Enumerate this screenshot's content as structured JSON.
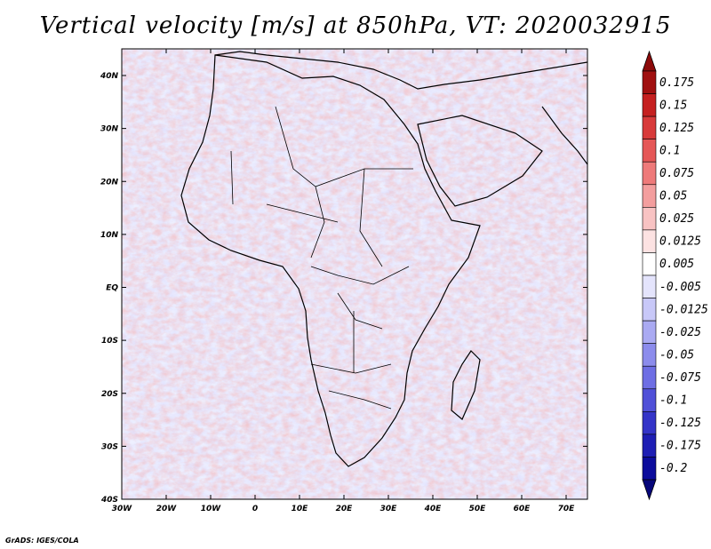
{
  "title": "Vertical velocity [m/s] at 850hPa, VT: 2020032915",
  "credit": "GrADS: IGES/COLA",
  "axes": {
    "lon_ticks": [
      "30W",
      "20W",
      "10W",
      "0",
      "10E",
      "20E",
      "30E",
      "40E",
      "50E",
      "60E",
      "70E"
    ],
    "lat_ticks": [
      "40N",
      "30N",
      "20N",
      "10N",
      "EQ",
      "10S",
      "20S",
      "30S",
      "40S"
    ]
  },
  "colorbar": {
    "labels": [
      "0.175",
      "0.15",
      "0.125",
      "0.1",
      "0.075",
      "0.05",
      "0.025",
      "0.0125",
      "0.005",
      "-0.005",
      "-0.0125",
      "-0.025",
      "-0.05",
      "-0.075",
      "-0.1",
      "-0.125",
      "-0.175",
      "-0.2"
    ],
    "colors": [
      "#a01010",
      "#c52020",
      "#d83a3a",
      "#e55757",
      "#ee7a7a",
      "#f39e9e",
      "#f8c3c3",
      "#fce2e2",
      "#ffffff",
      "#e4e4fc",
      "#c8c8f8",
      "#aaaaf2",
      "#8c8cec",
      "#6e6ee4",
      "#5050d8",
      "#3434c8",
      "#1e1eb4",
      "#0c0c9c"
    ],
    "top_arrow_color": "#8c0a0a",
    "bottom_arrow_color": "#06067a"
  }
}
